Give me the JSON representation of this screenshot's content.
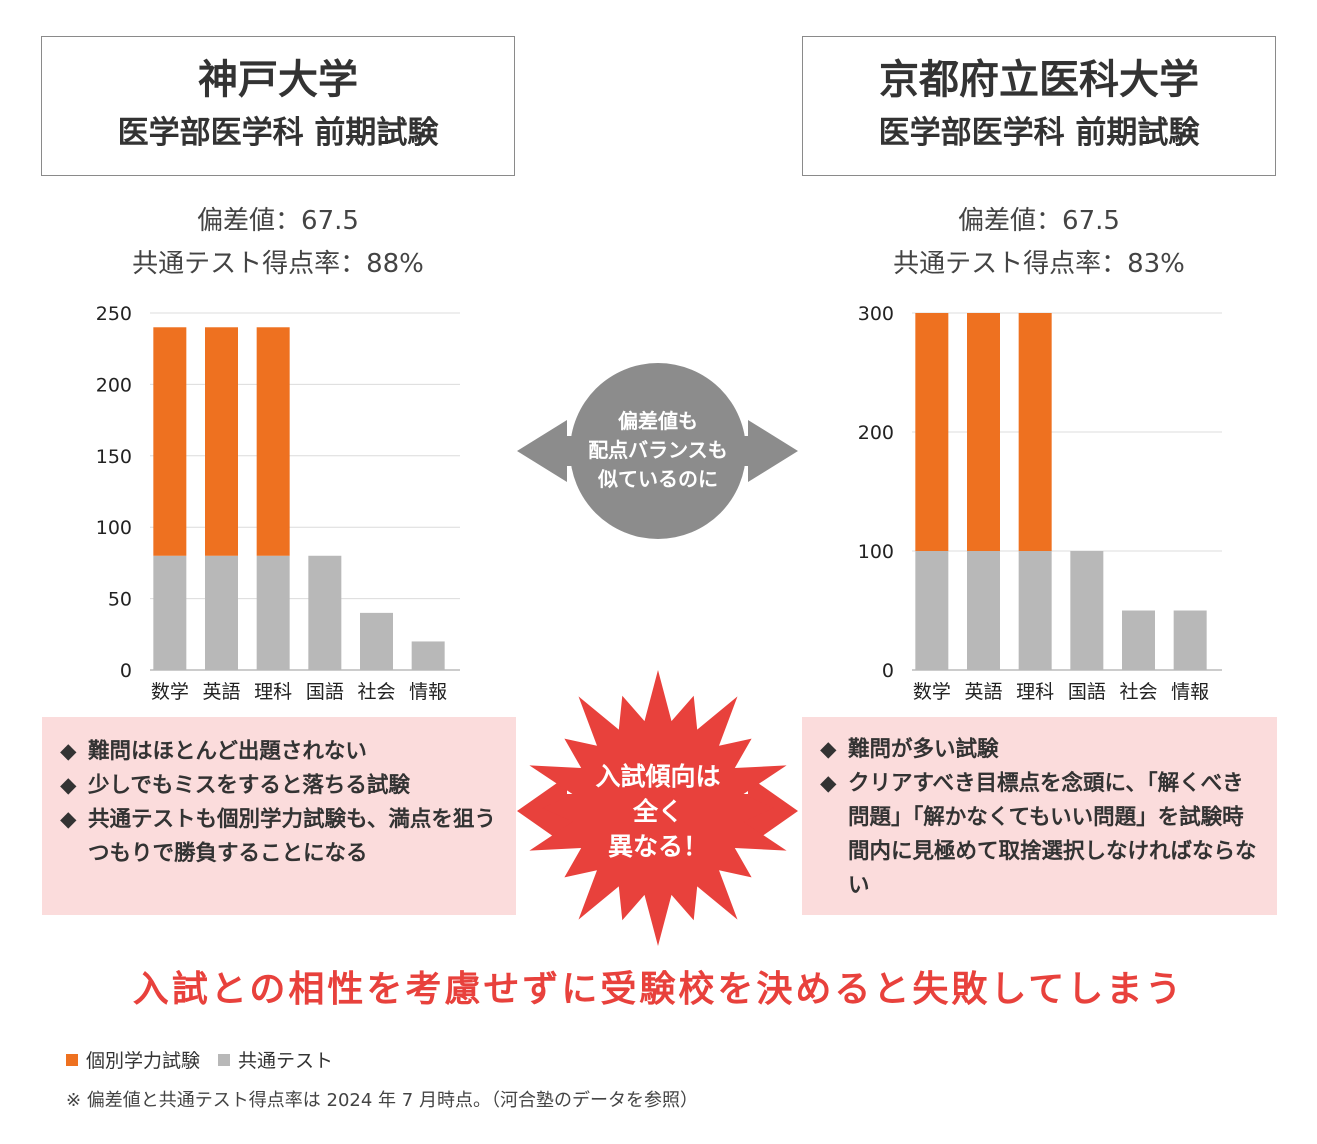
{
  "left": {
    "name": "神戸大学",
    "sub": "医学部医学科 前期試験",
    "hensachi": "偏差値：67.5",
    "kyotsu": "共通テスト得点率：88%",
    "points": [
      "難問はほとんど出題されない",
      "少しでもミスをすると落ちる試験",
      "共通テストも個別学力試験も、満点を狙うつもりで勝負することになる"
    ]
  },
  "right": {
    "name": "京都府立医科大学",
    "sub": "医学部医学科 前期試験",
    "hensachi": "偏差値：67.5",
    "kyotsu": "共通テスト得点率：83%",
    "points": [
      "難問が多い試験",
      "クリアすべき目標点を念頭に、「解くべき問題」「解かなくてもいい問題」を試験時間内に見極めて取捨選択しなければならない"
    ]
  },
  "center_top": [
    "偏差値も",
    "配点バランスも",
    "似ているのに"
  ],
  "center_burst": [
    "入試傾向は",
    "全く",
    "異なる！"
  ],
  "bullet": "◆",
  "conclusion": "入試との相性を考慮せずに受験校を決めると失敗してしまう",
  "legend": [
    {
      "label": "個別学力試験",
      "color": "#ee7120"
    },
    {
      "label": "共通テスト",
      "color": "#b8b8b8"
    }
  ],
  "note": "※ 偏差値と共通テスト得点率は 2024 年 7 月時点。（河合塾のデータを参照）",
  "colors": {
    "orange": "#ee7120",
    "gray": "#b8b8b8",
    "pink": "#fbdcdc",
    "red": "#e8413c",
    "circle": "#8c8c8c"
  },
  "chart_data": [
    {
      "type": "bar",
      "stacked": true,
      "categories": [
        "数学",
        "英語",
        "理科",
        "国語",
        "社会",
        "情報"
      ],
      "series": [
        {
          "name": "共通テスト",
          "values": [
            80,
            80,
            80,
            80,
            40,
            20
          ]
        },
        {
          "name": "個別学力試験",
          "values": [
            160,
            160,
            160,
            0,
            0,
            0
          ]
        }
      ],
      "ylim": [
        0,
        250
      ],
      "yticks": [
        0,
        50,
        100,
        150,
        200,
        250
      ],
      "grid": true
    },
    {
      "type": "bar",
      "stacked": true,
      "categories": [
        "数学",
        "英語",
        "理科",
        "国語",
        "社会",
        "情報"
      ],
      "series": [
        {
          "name": "共通テスト",
          "values": [
            100,
            100,
            100,
            100,
            50,
            50
          ]
        },
        {
          "name": "個別学力試験",
          "values": [
            200,
            200,
            200,
            0,
            0,
            0
          ]
        }
      ],
      "ylim": [
        0,
        300
      ],
      "yticks": [
        0,
        100,
        200,
        300
      ],
      "grid": true
    }
  ]
}
